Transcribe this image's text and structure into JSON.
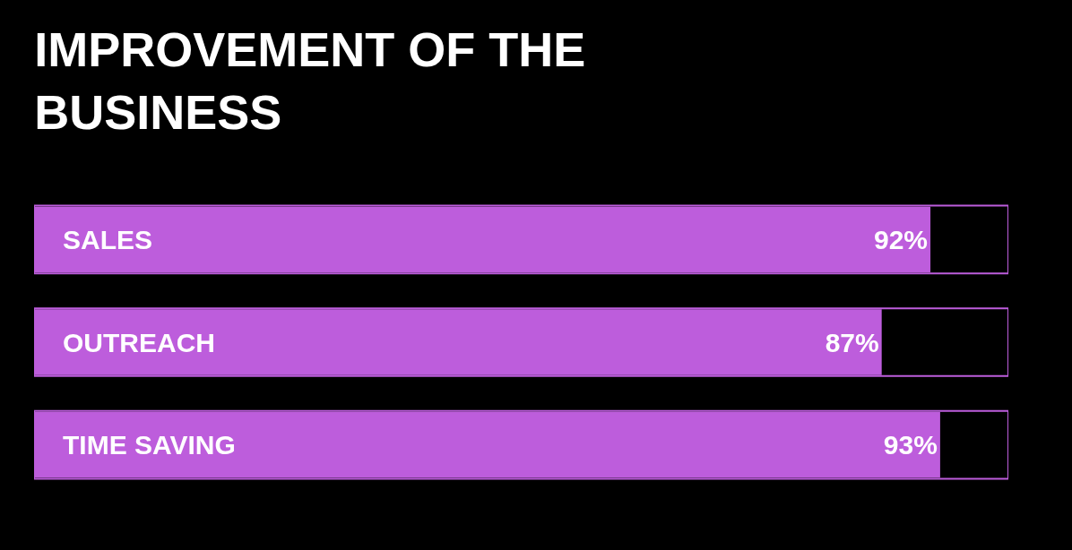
{
  "chart_data": {
    "type": "bar",
    "orientation": "horizontal",
    "title": "IMPROVEMENT OF THE BUSINESS",
    "categories": [
      "SALES",
      "OUTREACH",
      "TIME SAVING"
    ],
    "series": [
      {
        "color": "#bd5ddc",
        "values": [
          100,
          100,
          100
        ]
      },
      {
        "color": "#bd5ddc",
        "values": [
          92,
          87,
          93
        ],
        "value_labels": [
          "92%",
          "87%",
          "93%"
        ]
      }
    ],
    "xlim": [
      0,
      100
    ],
    "tick_labels": false,
    "grid": false
  }
}
